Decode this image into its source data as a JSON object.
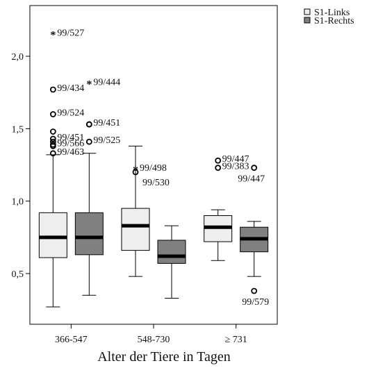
{
  "chart_data": {
    "type": "boxplot",
    "title": "",
    "xlabel": "Alter der Tiere in Tagen",
    "ylabel": "",
    "ylim": [
      0.15,
      2.35
    ],
    "yticks": [
      {
        "value": 0.5,
        "label": "0,5"
      },
      {
        "value": 1.0,
        "label": "1,0"
      },
      {
        "value": 1.5,
        "label": "1,5"
      },
      {
        "value": 2.0,
        "label": "2,0"
      }
    ],
    "categories": [
      "366-547",
      "548-730",
      "≥ 731"
    ],
    "grid": false,
    "legend": {
      "placement": "top-right",
      "entries": [
        {
          "name": "S1-Links",
          "color": "#eeeeee"
        },
        {
          "name": "S1-Rechts",
          "color": "#808080"
        }
      ]
    },
    "series": [
      {
        "name": "S1-Links",
        "color": "#eeeeee",
        "boxes": [
          {
            "category": "366-547",
            "whisker_low": 0.27,
            "q1": 0.61,
            "median": 0.75,
            "q3": 0.92,
            "whisker_high": 1.32
          },
          {
            "category": "548-730",
            "whisker_low": 0.48,
            "q1": 0.66,
            "median": 0.83,
            "q3": 0.95,
            "whisker_high": 1.38
          },
          {
            "category": "≥ 731",
            "whisker_low": 0.59,
            "q1": 0.72,
            "median": 0.82,
            "q3": 0.9,
            "whisker_high": 0.94
          }
        ]
      },
      {
        "name": "S1-Rechts",
        "color": "#808080",
        "boxes": [
          {
            "category": "366-547",
            "whisker_low": 0.35,
            "q1": 0.63,
            "median": 0.75,
            "q3": 0.92,
            "whisker_high": 1.33
          },
          {
            "category": "548-730",
            "whisker_low": 0.33,
            "q1": 0.57,
            "median": 0.62,
            "q3": 0.73,
            "whisker_high": 0.83
          },
          {
            "category": "≥ 731",
            "whisker_low": 0.48,
            "q1": 0.65,
            "median": 0.74,
            "q3": 0.82,
            "whisker_high": 0.86
          }
        ]
      }
    ],
    "outliers": [
      {
        "category": "366-547",
        "series": "S1-Links",
        "value": 2.15,
        "marker": "star",
        "label": "99/527"
      },
      {
        "category": "366-547",
        "series": "S1-Links",
        "value": 1.77,
        "marker": "circle",
        "label": "99/434"
      },
      {
        "category": "366-547",
        "series": "S1-Links",
        "value": 1.6,
        "marker": "circle",
        "label": "99/524"
      },
      {
        "category": "366-547",
        "series": "S1-Links",
        "value": 1.48,
        "marker": "circle",
        "label": ""
      },
      {
        "category": "366-547",
        "series": "S1-Links",
        "value": 1.43,
        "marker": "circle",
        "label": "99/451"
      },
      {
        "category": "366-547",
        "series": "S1-Links",
        "value": 1.41,
        "marker": "circle",
        "label": ""
      },
      {
        "category": "366-547",
        "series": "S1-Links",
        "value": 1.39,
        "marker": "circle",
        "label": "99/566"
      },
      {
        "category": "366-547",
        "series": "S1-Links",
        "value": 1.38,
        "marker": "circle",
        "label": ""
      },
      {
        "category": "366-547",
        "series": "S1-Links",
        "value": 1.33,
        "marker": "circle",
        "label": "99/463"
      },
      {
        "category": "366-547",
        "series": "S1-Rechts",
        "value": 1.81,
        "marker": "star",
        "label": "99/444"
      },
      {
        "category": "366-547",
        "series": "S1-Rechts",
        "value": 1.53,
        "marker": "circle",
        "label": "99/451"
      },
      {
        "category": "366-547",
        "series": "S1-Rechts",
        "value": 1.53,
        "marker": "circle",
        "label": ""
      },
      {
        "category": "366-547",
        "series": "S1-Rechts",
        "value": 1.41,
        "marker": "circle",
        "label": "99/525"
      },
      {
        "category": "548-730",
        "series": "S1-Links",
        "value": 1.22,
        "marker": "star",
        "label": "99/498"
      },
      {
        "category": "548-730",
        "series": "S1-Links",
        "value": 1.2,
        "marker": "circle",
        "label": "99/530"
      },
      {
        "category": "≥ 731",
        "series": "S1-Links",
        "value": 1.28,
        "marker": "circle",
        "label": "99/447"
      },
      {
        "category": "≥ 731",
        "series": "S1-Links",
        "value": 1.23,
        "marker": "circle",
        "label": "99/383"
      },
      {
        "category": "≥ 731",
        "series": "S1-Rechts",
        "value": 1.23,
        "marker": "circle",
        "label": "99/447"
      },
      {
        "category": "≥ 731",
        "series": "S1-Rechts",
        "value": 0.38,
        "marker": "circle",
        "label": "99/579"
      }
    ]
  }
}
